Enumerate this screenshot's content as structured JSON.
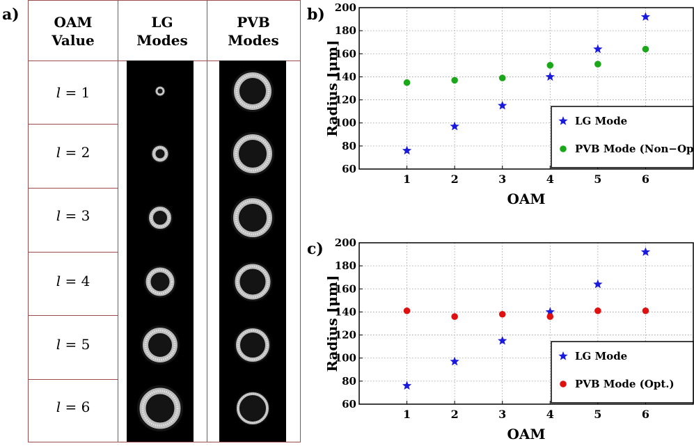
{
  "panel_labels": {
    "a": "a)",
    "b": "b)",
    "c": "c)"
  },
  "table": {
    "headers": [
      {
        "line1": "OAM",
        "line2": "Value"
      },
      {
        "line1": "LG",
        "line2": "Modes"
      },
      {
        "line1": "PVB",
        "line2": "Modes"
      }
    ],
    "rows": [
      {
        "var": "l",
        "eq": " = 1"
      },
      {
        "var": "l",
        "eq": " = 2"
      },
      {
        "var": "l",
        "eq": " = 3"
      },
      {
        "var": "l",
        "eq": " = 4"
      },
      {
        "var": "l",
        "eq": " = 5"
      },
      {
        "var": "l",
        "eq": " = 6"
      }
    ]
  },
  "chart_data": [
    {
      "type": "scatter",
      "panel": "b)",
      "xlabel": "OAM",
      "ylabel": "Radius [μm]",
      "xlim": [
        0,
        7
      ],
      "ylim": [
        60,
        200
      ],
      "xticks": [
        1,
        2,
        3,
        4,
        5,
        6
      ],
      "yticks": [
        60,
        80,
        100,
        120,
        140,
        160,
        180,
        200
      ],
      "grid": true,
      "legend": "bottom-right",
      "series": [
        {
          "name": "LG Mode",
          "marker": "star",
          "color": "#1a1adc",
          "x": [
            1,
            2,
            3,
            4,
            5,
            6
          ],
          "y": [
            76,
            97,
            115,
            140,
            164,
            192
          ]
        },
        {
          "name": "PVB Mode (Non−Opt.)",
          "marker": "circle",
          "color": "#1aa81a",
          "x": [
            1,
            2,
            3,
            4,
            5,
            6
          ],
          "y": [
            135,
            137,
            139,
            150,
            151,
            164
          ]
        }
      ]
    },
    {
      "type": "scatter",
      "panel": "c)",
      "xlabel": "OAM",
      "ylabel": "Radius [μm]",
      "xlim": [
        0,
        7
      ],
      "ylim": [
        60,
        200
      ],
      "xticks": [
        1,
        2,
        3,
        4,
        5,
        6
      ],
      "yticks": [
        60,
        80,
        100,
        120,
        140,
        160,
        180,
        200
      ],
      "grid": true,
      "legend": "bottom-right",
      "series": [
        {
          "name": "LG Mode",
          "marker": "star",
          "color": "#1a1adc",
          "x": [
            1,
            2,
            3,
            4,
            5,
            6
          ],
          "y": [
            76,
            97,
            115,
            140,
            164,
            192
          ]
        },
        {
          "name": "PVB Mode (Opt.)",
          "marker": "circle",
          "color": "#e01010",
          "x": [
            1,
            2,
            3,
            4,
            5,
            6
          ],
          "y": [
            141,
            136,
            138,
            136,
            141,
            141
          ]
        }
      ]
    }
  ]
}
